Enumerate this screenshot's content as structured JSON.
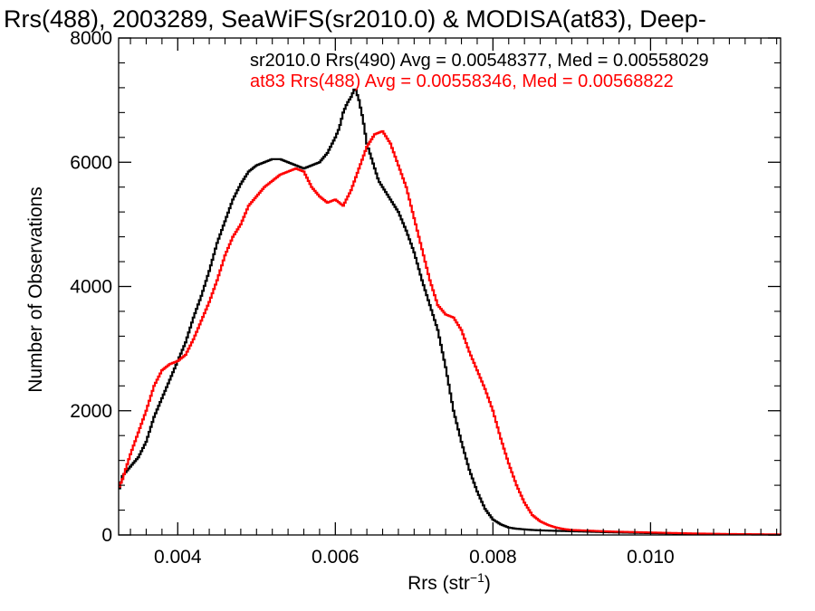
{
  "chart_data": {
    "type": "line",
    "title": "Rrs(488), 2003289, SeaWiFS(sr2010.0) & MODISA(at83), Deep-",
    "xlabel": "Rrs (str",
    "xlabel_superscript": "−1",
    "xlabel_suffix": ")",
    "ylabel": "Number of Observations",
    "xlim": [
      0.00325,
      0.01165
    ],
    "ylim": [
      0,
      8000
    ],
    "xticks": [
      0.004,
      0.006,
      0.008,
      0.01
    ],
    "xtick_labels": [
      "0.004",
      "0.006",
      "0.008",
      "0.010"
    ],
    "yticks": [
      0,
      2000,
      4000,
      6000,
      8000
    ],
    "ytick_labels": [
      "0",
      "2000",
      "4000",
      "6000",
      "8000"
    ],
    "grid": false,
    "legend_placement": "top-right",
    "series": [
      {
        "name": "sr2010.0 Rrs(490) Avg = 0.00548377, Med = 0.00558029",
        "color": "#000000",
        "points": [
          [
            0.00325,
            700
          ],
          [
            0.0033,
            950
          ],
          [
            0.0034,
            1100
          ],
          [
            0.0035,
            1250
          ],
          [
            0.0036,
            1500
          ],
          [
            0.0037,
            1900
          ],
          [
            0.0038,
            2200
          ],
          [
            0.0039,
            2500
          ],
          [
            0.004,
            2800
          ],
          [
            0.0041,
            3100
          ],
          [
            0.0042,
            3500
          ],
          [
            0.0043,
            3850
          ],
          [
            0.0044,
            4250
          ],
          [
            0.0045,
            4700
          ],
          [
            0.0046,
            5050
          ],
          [
            0.0047,
            5400
          ],
          [
            0.0048,
            5650
          ],
          [
            0.0049,
            5850
          ],
          [
            0.005,
            5950
          ],
          [
            0.0051,
            6000
          ],
          [
            0.0052,
            6050
          ],
          [
            0.0053,
            6050
          ],
          [
            0.0054,
            6000
          ],
          [
            0.0055,
            5950
          ],
          [
            0.0056,
            5900
          ],
          [
            0.0057,
            5950
          ],
          [
            0.0058,
            6000
          ],
          [
            0.0059,
            6150
          ],
          [
            0.006,
            6400
          ],
          [
            0.00605,
            6550
          ],
          [
            0.0061,
            6800
          ],
          [
            0.00615,
            6950
          ],
          [
            0.0062,
            7050
          ],
          [
            0.00625,
            7200
          ],
          [
            0.0063,
            7000
          ],
          [
            0.00635,
            6700
          ],
          [
            0.0064,
            6300
          ],
          [
            0.00645,
            6100
          ],
          [
            0.0065,
            5900
          ],
          [
            0.00655,
            5700
          ],
          [
            0.0066,
            5600
          ],
          [
            0.0067,
            5400
          ],
          [
            0.0068,
            5200
          ],
          [
            0.0069,
            4900
          ],
          [
            0.007,
            4550
          ],
          [
            0.0071,
            4100
          ],
          [
            0.0072,
            3700
          ],
          [
            0.0073,
            3300
          ],
          [
            0.0074,
            2700
          ],
          [
            0.0075,
            2000
          ],
          [
            0.0076,
            1500
          ],
          [
            0.0077,
            1050
          ],
          [
            0.0078,
            700
          ],
          [
            0.0079,
            420
          ],
          [
            0.008,
            250
          ],
          [
            0.0081,
            170
          ],
          [
            0.0082,
            120
          ],
          [
            0.0083,
            100
          ],
          [
            0.0084,
            90
          ],
          [
            0.0085,
            80
          ],
          [
            0.0087,
            70
          ],
          [
            0.009,
            60
          ],
          [
            0.0093,
            50
          ],
          [
            0.0096,
            40
          ],
          [
            0.01,
            30
          ],
          [
            0.0105,
            20
          ],
          [
            0.011,
            10
          ],
          [
            0.01165,
            5
          ]
        ]
      },
      {
        "name": "at83 Rrs(488) Avg = 0.00558346, Med = 0.00568822",
        "color": "#ff0000",
        "points": [
          [
            0.00325,
            750
          ],
          [
            0.0033,
            900
          ],
          [
            0.0034,
            1300
          ],
          [
            0.0035,
            1650
          ],
          [
            0.0036,
            2000
          ],
          [
            0.0037,
            2400
          ],
          [
            0.0038,
            2650
          ],
          [
            0.0039,
            2750
          ],
          [
            0.004,
            2800
          ],
          [
            0.0041,
            2900
          ],
          [
            0.0042,
            3150
          ],
          [
            0.0043,
            3450
          ],
          [
            0.0044,
            3750
          ],
          [
            0.0045,
            4100
          ],
          [
            0.0046,
            4500
          ],
          [
            0.0047,
            4800
          ],
          [
            0.0048,
            5000
          ],
          [
            0.0049,
            5300
          ],
          [
            0.005,
            5450
          ],
          [
            0.0051,
            5600
          ],
          [
            0.0052,
            5700
          ],
          [
            0.0053,
            5800
          ],
          [
            0.0054,
            5850
          ],
          [
            0.0055,
            5900
          ],
          [
            0.0056,
            5850
          ],
          [
            0.0057,
            5600
          ],
          [
            0.0058,
            5450
          ],
          [
            0.0059,
            5350
          ],
          [
            0.006,
            5400
          ],
          [
            0.0061,
            5300
          ],
          [
            0.0062,
            5550
          ],
          [
            0.0063,
            5900
          ],
          [
            0.0064,
            6250
          ],
          [
            0.0065,
            6450
          ],
          [
            0.0066,
            6500
          ],
          [
            0.0067,
            6300
          ],
          [
            0.0068,
            5950
          ],
          [
            0.0069,
            5600
          ],
          [
            0.007,
            5100
          ],
          [
            0.0071,
            4600
          ],
          [
            0.0072,
            4100
          ],
          [
            0.0073,
            3700
          ],
          [
            0.0074,
            3550
          ],
          [
            0.0075,
            3500
          ],
          [
            0.0076,
            3300
          ],
          [
            0.0077,
            2950
          ],
          [
            0.0078,
            2650
          ],
          [
            0.0079,
            2350
          ],
          [
            0.008,
            2000
          ],
          [
            0.0081,
            1550
          ],
          [
            0.0082,
            1150
          ],
          [
            0.0083,
            800
          ],
          [
            0.0084,
            520
          ],
          [
            0.0085,
            320
          ],
          [
            0.0086,
            220
          ],
          [
            0.0087,
            160
          ],
          [
            0.0088,
            120
          ],
          [
            0.0089,
            95
          ],
          [
            0.009,
            80
          ],
          [
            0.0092,
            70
          ],
          [
            0.0095,
            55
          ],
          [
            0.01,
            40
          ],
          [
            0.0105,
            25
          ],
          [
            0.011,
            15
          ],
          [
            0.01165,
            8
          ]
        ]
      }
    ]
  }
}
